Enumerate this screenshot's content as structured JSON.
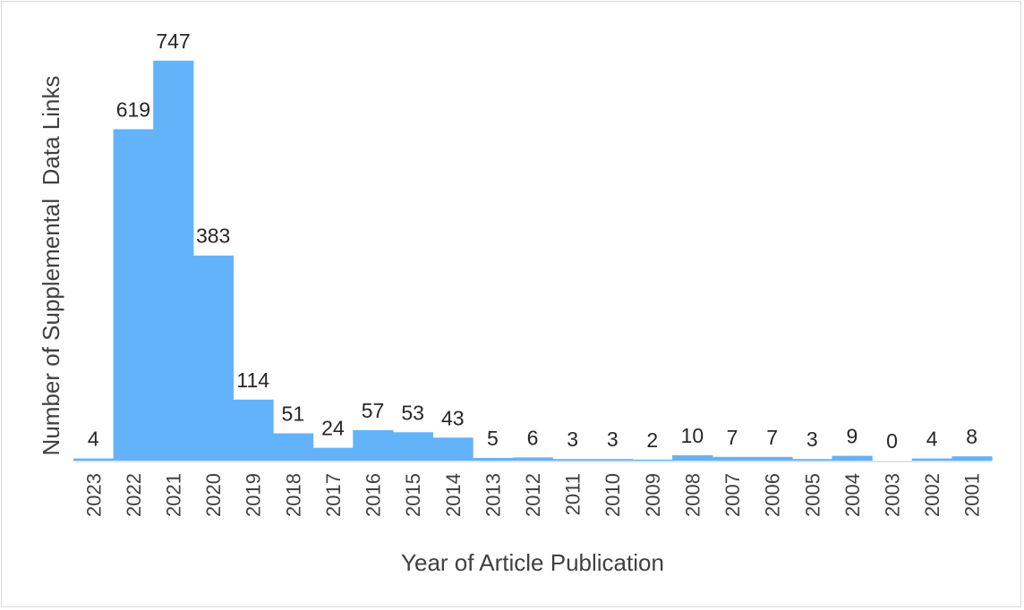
{
  "chart_data": {
    "type": "bar",
    "xlabel": "Year of Article Publication",
    "ylabel": "Number of Supplemental  Data Links",
    "categories": [
      "2023",
      "2022",
      "2021",
      "2020",
      "2019",
      "2018",
      "2017",
      "2016",
      "2015",
      "2014",
      "2013",
      "2012",
      "2011",
      "2010",
      "2009",
      "2008",
      "2007",
      "2006",
      "2005",
      "2004",
      "2003",
      "2002",
      "2001"
    ],
    "values": [
      4,
      619,
      747,
      383,
      114,
      51,
      24,
      57,
      53,
      43,
      5,
      6,
      3,
      3,
      2,
      10,
      7,
      7,
      3,
      9,
      0,
      4,
      8
    ],
    "ylim": [
      0,
      750
    ],
    "grid": false,
    "legend": "none",
    "colors": {
      "bar": "#63b3fb",
      "axis": "#d9d9d9",
      "text": "#404040"
    }
  }
}
